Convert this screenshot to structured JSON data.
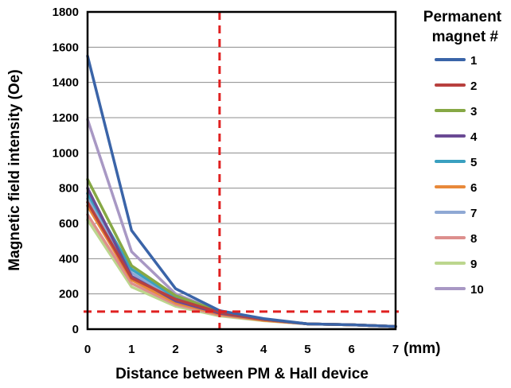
{
  "chart_data": {
    "type": "line",
    "title": "",
    "xlabel": "Distance between PM & Hall device",
    "x_unit_label": "(mm)",
    "ylabel": "Magnetic field intensity (Oe)",
    "xlim": [
      0,
      7
    ],
    "ylim": [
      0,
      1800
    ],
    "x_ticks": [
      "0",
      "1",
      "2",
      "3",
      "4",
      "5",
      "6",
      "7"
    ],
    "y_ticks": [
      "0",
      "200",
      "400",
      "600",
      "800",
      "1000",
      "1200",
      "1400",
      "1600",
      "1800"
    ],
    "grid": "horizontal",
    "legend": {
      "title_line1": "Permanent",
      "title_line2": "magnet #",
      "position": "right"
    },
    "x": [
      0,
      1,
      2,
      3,
      4,
      5,
      6,
      7
    ],
    "series": [
      {
        "name": "1",
        "color": "#3a64a8",
        "values": [
          1550,
          560,
          230,
          105,
          60,
          30,
          25,
          15
        ]
      },
      {
        "name": "2",
        "color": "#b8403e",
        "values": [
          720,
          290,
          170,
          95,
          55,
          30,
          25,
          15
        ]
      },
      {
        "name": "3",
        "color": "#86a845",
        "values": [
          850,
          360,
          190,
          100,
          55,
          30,
          25,
          15
        ]
      },
      {
        "name": "4",
        "color": "#6a4a94",
        "values": [
          800,
          300,
          160,
          90,
          55,
          30,
          25,
          15
        ]
      },
      {
        "name": "5",
        "color": "#3aa0c0",
        "values": [
          770,
          340,
          180,
          95,
          55,
          30,
          25,
          15
        ]
      },
      {
        "name": "6",
        "color": "#e8893a",
        "values": [
          700,
          280,
          150,
          85,
          50,
          30,
          25,
          15
        ]
      },
      {
        "name": "7",
        "color": "#8fa8d4",
        "values": [
          740,
          320,
          165,
          92,
          55,
          30,
          25,
          15
        ]
      },
      {
        "name": "8",
        "color": "#dd8f8d",
        "values": [
          650,
          260,
          140,
          80,
          50,
          30,
          25,
          15
        ]
      },
      {
        "name": "9",
        "color": "#bcd68e",
        "values": [
          620,
          240,
          130,
          75,
          48,
          30,
          25,
          15
        ]
      },
      {
        "name": "10",
        "color": "#a898c4",
        "values": [
          1190,
          440,
          200,
          100,
          55,
          30,
          25,
          15
        ]
      }
    ],
    "reference_lines": {
      "color": "#e02020",
      "vertical_x": 3,
      "horizontal_y": 100
    }
  }
}
